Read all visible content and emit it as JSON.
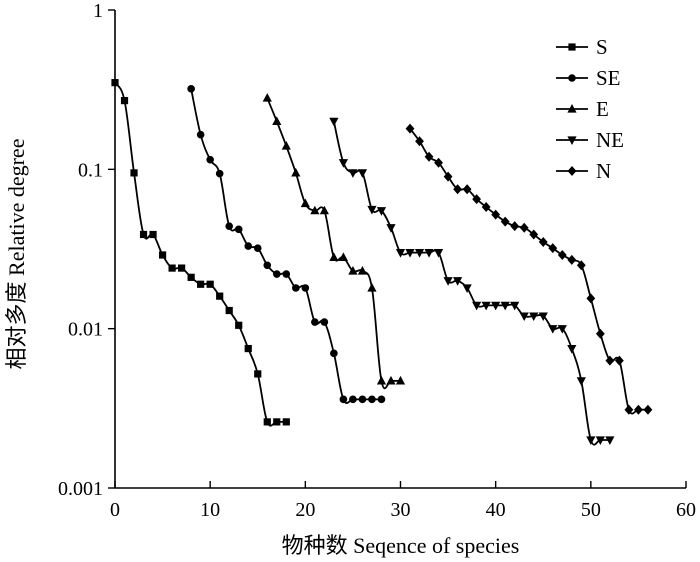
{
  "chart_data": {
    "type": "line",
    "xlabel": "物种数 Seqence of species",
    "ylabel": "相对多度 Relative degree",
    "xlim": [
      0,
      60
    ],
    "ylim": [
      0.001,
      1
    ],
    "y_scale": "log",
    "x_ticks": [
      0,
      10,
      20,
      30,
      40,
      50,
      60
    ],
    "x_tick_labels": [
      "0",
      "10",
      "20",
      "30",
      "40",
      "50",
      "60"
    ],
    "y_ticks": [
      0.001,
      0.01,
      0.1,
      1
    ],
    "y_tick_labels": [
      "0.001",
      "0.01",
      "0.1",
      "1"
    ],
    "legend_position": "top-right",
    "series": [
      {
        "name": "S",
        "marker": "square",
        "x": [
          0,
          1,
          2,
          3,
          4,
          5,
          6,
          7,
          8,
          9,
          10,
          11,
          12,
          13,
          14,
          15,
          16,
          17,
          18
        ],
        "y": [
          0.35,
          0.27,
          0.095,
          0.039,
          0.039,
          0.029,
          0.024,
          0.024,
          0.021,
          0.019,
          0.019,
          0.016,
          0.013,
          0.0105,
          0.0075,
          0.0052,
          0.0026,
          0.0026,
          0.0026
        ]
      },
      {
        "name": "SE",
        "marker": "circle",
        "x": [
          8,
          9,
          10,
          11,
          12,
          13,
          14,
          15,
          16,
          17,
          18,
          19,
          20,
          21,
          22,
          23,
          24,
          25,
          26,
          27,
          28
        ],
        "y": [
          0.32,
          0.165,
          0.115,
          0.094,
          0.044,
          0.042,
          0.033,
          0.032,
          0.025,
          0.022,
          0.022,
          0.018,
          0.018,
          0.011,
          0.011,
          0.007,
          0.0036,
          0.0036,
          0.0036,
          0.0036,
          0.0036
        ]
      },
      {
        "name": "E",
        "marker": "triangle-up",
        "x": [
          16,
          17,
          18,
          19,
          20,
          21,
          22,
          23,
          24,
          25,
          26,
          27,
          28,
          29,
          30
        ],
        "y": [
          0.28,
          0.2,
          0.14,
          0.095,
          0.061,
          0.055,
          0.055,
          0.028,
          0.028,
          0.023,
          0.023,
          0.018,
          0.0047,
          0.0047,
          0.0047
        ]
      },
      {
        "name": "NE",
        "marker": "triangle-down",
        "x": [
          23,
          24,
          25,
          26,
          27,
          28,
          29,
          30,
          31,
          32,
          33,
          34,
          35,
          36,
          37,
          38,
          39,
          40,
          41,
          42,
          43,
          44,
          45,
          46,
          47,
          48,
          49,
          50,
          51,
          52
        ],
        "y": [
          0.2,
          0.11,
          0.095,
          0.095,
          0.056,
          0.055,
          0.043,
          0.03,
          0.03,
          0.03,
          0.03,
          0.03,
          0.02,
          0.02,
          0.018,
          0.014,
          0.014,
          0.014,
          0.014,
          0.014,
          0.012,
          0.012,
          0.012,
          0.01,
          0.01,
          0.0075,
          0.0047,
          0.002,
          0.002,
          0.002
        ]
      },
      {
        "name": "N",
        "marker": "diamond",
        "x": [
          31,
          32,
          33,
          34,
          35,
          36,
          37,
          38,
          39,
          40,
          41,
          42,
          43,
          44,
          45,
          46,
          47,
          48,
          49,
          50,
          51,
          52,
          53,
          54,
          55,
          56
        ],
        "y": [
          0.18,
          0.15,
          0.12,
          0.11,
          0.09,
          0.075,
          0.075,
          0.065,
          0.058,
          0.052,
          0.047,
          0.044,
          0.043,
          0.039,
          0.035,
          0.032,
          0.029,
          0.027,
          0.025,
          0.0155,
          0.0093,
          0.0063,
          0.0063,
          0.0031,
          0.0031,
          0.0031
        ]
      }
    ]
  }
}
